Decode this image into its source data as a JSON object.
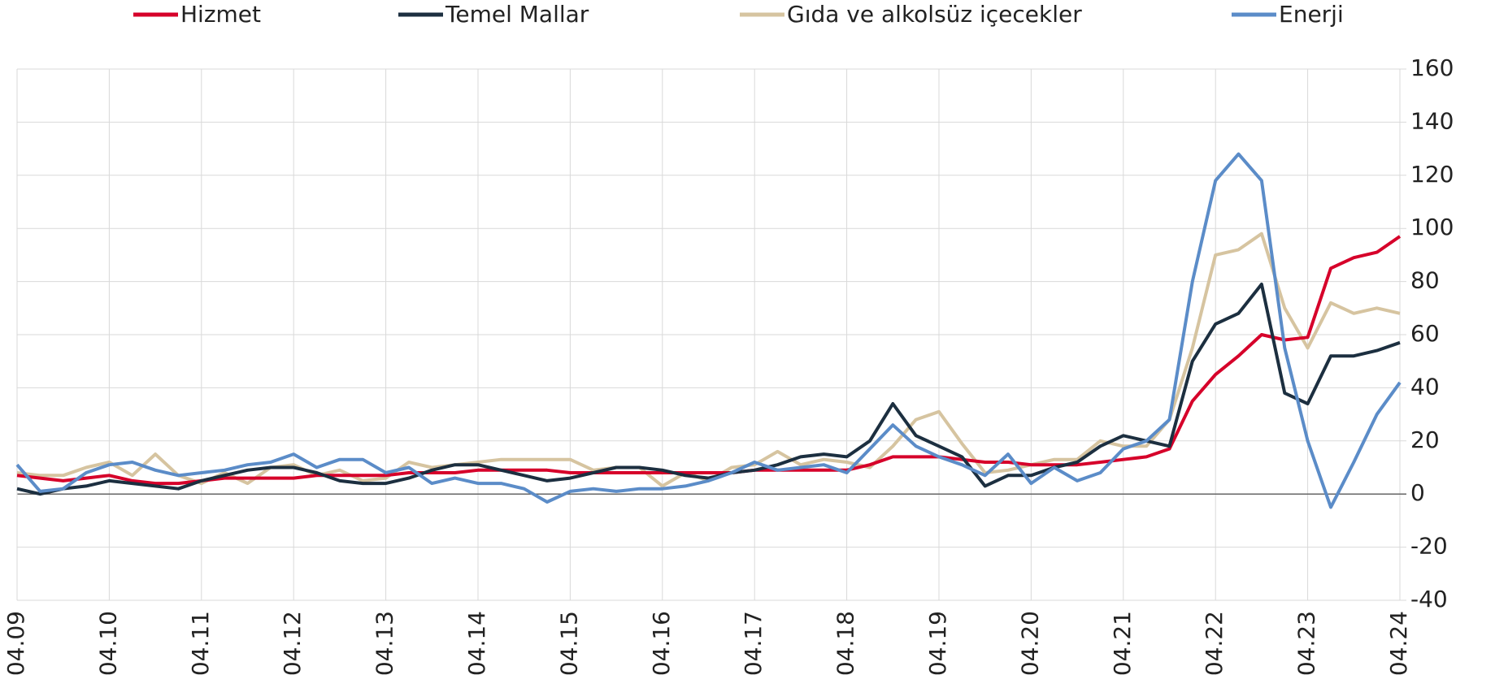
{
  "chart_data": {
    "type": "line",
    "categories": [
      "04.09",
      null,
      null,
      null,
      "04.10",
      null,
      null,
      null,
      "04.11",
      null,
      null,
      null,
      "04.12",
      null,
      null,
      null,
      "04.13",
      null,
      null,
      null,
      "04.14",
      null,
      null,
      null,
      "04.15",
      null,
      null,
      null,
      "04.16",
      null,
      null,
      null,
      "04.17",
      null,
      null,
      null,
      "04.18",
      null,
      null,
      null,
      "04.19",
      null,
      null,
      null,
      "04.20",
      null,
      null,
      null,
      "04.21",
      null,
      null,
      null,
      "04.22",
      null,
      null,
      null,
      "04.23",
      null,
      null,
      null,
      "04.24"
    ],
    "series": [
      {
        "name": "Hizmet",
        "color": "#d6002a",
        "values": [
          7,
          6,
          5,
          6,
          7,
          5,
          4,
          4,
          5,
          6,
          6,
          6,
          6,
          7,
          7,
          7,
          7,
          8,
          8,
          8,
          9,
          9,
          9,
          9,
          8,
          8,
          8,
          8,
          8,
          8,
          8,
          8,
          9,
          9,
          9,
          9,
          9,
          11,
          14,
          14,
          14,
          13,
          12,
          12,
          11,
          11,
          11,
          12,
          13,
          14,
          17,
          35,
          45,
          52,
          60,
          58,
          59,
          85,
          89,
          91,
          97
        ]
      },
      {
        "name": "Temel Mallar",
        "color": "#1c2f40",
        "values": [
          2,
          0,
          2,
          3,
          5,
          4,
          3,
          2,
          5,
          7,
          9,
          10,
          10,
          8,
          5,
          4,
          4,
          6,
          9,
          11,
          11,
          9,
          7,
          5,
          6,
          8,
          10,
          10,
          9,
          7,
          6,
          8,
          9,
          11,
          14,
          15,
          14,
          20,
          34,
          22,
          18,
          14,
          3,
          7,
          7,
          10,
          12,
          18,
          22,
          20,
          18,
          50,
          64,
          68,
          79,
          38,
          34,
          52,
          52,
          54,
          57
        ]
      },
      {
        "name": "Gıda ve alkolsüz içecekler",
        "color": "#d6c4a0",
        "values": [
          8,
          7,
          7,
          10,
          12,
          7,
          15,
          7,
          4,
          8,
          4,
          10,
          11,
          7,
          9,
          5,
          6,
          12,
          10,
          11,
          12,
          13,
          13,
          13,
          13,
          9,
          10,
          10,
          3,
          8,
          5,
          10,
          11,
          16,
          11,
          13,
          12,
          10,
          18,
          28,
          31,
          19,
          8,
          9,
          11,
          13,
          13,
          20,
          18,
          18,
          28,
          55,
          90,
          92,
          98,
          70,
          55,
          72,
          68,
          70,
          68
        ]
      },
      {
        "name": "Enerji",
        "color": "#5b8cc8",
        "values": [
          11,
          1,
          2,
          8,
          11,
          12,
          9,
          7,
          8,
          9,
          11,
          12,
          15,
          10,
          13,
          13,
          8,
          10,
          4,
          6,
          4,
          4,
          2,
          -3,
          1,
          2,
          1,
          2,
          2,
          3,
          5,
          8,
          12,
          9,
          10,
          11,
          8,
          17,
          26,
          18,
          14,
          11,
          7,
          15,
          4,
          10,
          5,
          8,
          17,
          20,
          28,
          80,
          118,
          128,
          118,
          55,
          20,
          -5,
          12,
          30,
          42
        ]
      }
    ],
    "ylim": [
      -40,
      160
    ],
    "yticks": [
      -40,
      -20,
      0,
      20,
      40,
      60,
      80,
      100,
      120,
      140,
      160
    ],
    "grid": true
  }
}
